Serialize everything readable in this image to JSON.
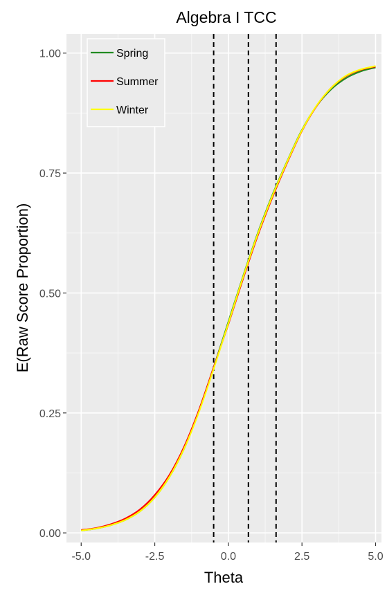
{
  "chart_data": {
    "type": "line",
    "title": "Algebra I TCC",
    "xlabel": "Theta",
    "ylabel": "E(Raw Score Proportion)",
    "xlim": [
      -5.5,
      5.2
    ],
    "ylim": [
      -0.02,
      1.04
    ],
    "xticks": [
      -5.0,
      -2.5,
      0.0,
      2.5,
      5.0
    ],
    "xtick_labels": [
      "-5.0",
      "-2.5",
      "0.0",
      "2.5",
      "5.0"
    ],
    "yticks": [
      0.0,
      0.25,
      0.5,
      0.75,
      1.0
    ],
    "ytick_labels": [
      "0.00",
      "0.25",
      "0.50",
      "0.75",
      "1.00"
    ],
    "grid": true,
    "legend_position": "top-left",
    "x": [
      -5.0,
      -4.5,
      -4.0,
      -3.5,
      -3.0,
      -2.5,
      -2.0,
      -1.5,
      -1.0,
      -0.5,
      0.0,
      0.5,
      1.0,
      1.5,
      2.0,
      2.5,
      3.0,
      3.5,
      4.0,
      4.5,
      5.0
    ],
    "series": [
      {
        "name": "Spring",
        "color": "#228B22",
        "values": [
          0.005,
          0.009,
          0.016,
          0.027,
          0.045,
          0.074,
          0.117,
          0.176,
          0.255,
          0.345,
          0.44,
          0.535,
          0.625,
          0.705,
          0.775,
          0.84,
          0.89,
          0.925,
          0.948,
          0.962,
          0.97
        ]
      },
      {
        "name": "Summer",
        "color": "#FF0000",
        "values": [
          0.006,
          0.01,
          0.018,
          0.03,
          0.049,
          0.079,
          0.121,
          0.18,
          0.256,
          0.345,
          0.435,
          0.53,
          0.62,
          0.7,
          0.772,
          0.838,
          0.89,
          0.928,
          0.952,
          0.965,
          0.972
        ]
      },
      {
        "name": "Winter",
        "color": "#FFFF00",
        "values": [
          0.005,
          0.009,
          0.016,
          0.027,
          0.045,
          0.074,
          0.117,
          0.176,
          0.252,
          0.342,
          0.437,
          0.533,
          0.623,
          0.703,
          0.774,
          0.839,
          0.891,
          0.928,
          0.953,
          0.966,
          0.973
        ]
      }
    ],
    "reference_lines_x": [
      -0.5,
      0.68,
      1.62
    ]
  }
}
